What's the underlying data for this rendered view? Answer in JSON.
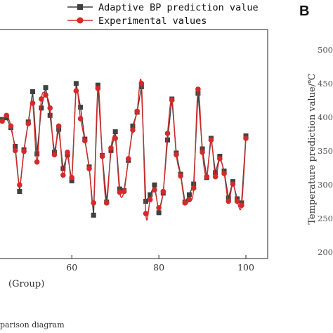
{
  "panel_b": {
    "letter": "B",
    "ylabel": "Temperature prediction value/℃",
    "yticks": [
      "500",
      "450",
      "400",
      "350",
      "300",
      "250",
      "200"
    ]
  },
  "caption": "parison diagram",
  "colors": {
    "predicted": "#404040",
    "experimental": "#d42a2a",
    "frame": "#222222"
  },
  "chart_data": {
    "type": "line",
    "xlabel": "(Group)",
    "xticks": [
      60,
      80,
      100
    ],
    "xlim": [
      43.5,
      105
    ],
    "ylim": [
      200,
      480
    ],
    "legend_position": "top",
    "series": [
      {
        "name": "Adaptive BP prediction value",
        "marker": "square",
        "x": [
          44,
          45,
          46,
          47,
          48,
          49,
          50,
          51,
          52,
          53,
          54,
          55,
          56,
          57,
          58,
          59,
          60,
          61,
          62,
          63,
          64,
          65,
          66,
          67,
          68,
          69,
          70,
          71,
          72,
          73,
          74,
          75,
          76,
          77,
          78,
          79,
          80,
          81,
          82,
          83,
          84,
          85,
          86,
          87,
          88,
          89,
          90,
          91,
          92,
          93,
          94,
          95,
          96,
          97,
          98,
          99,
          100
        ],
        "values": [
          370,
          372,
          360,
          337,
          282,
          333,
          367,
          404,
          328,
          384,
          409,
          375,
          330,
          358,
          310,
          327,
          295,
          414,
          385,
          346,
          312,
          253,
          412,
          326,
          269,
          332,
          355,
          285,
          283,
          320,
          362,
          379,
          410,
          270,
          278,
          290,
          256,
          280,
          345,
          395,
          329,
          303,
          269,
          278,
          291,
          402,
          334,
          299,
          347,
          305,
          325,
          307,
          274,
          294,
          273,
          268,
          350
        ]
      },
      {
        "name": "Experimental values",
        "marker": "circle",
        "x": [
          44,
          45,
          46,
          47,
          48,
          49,
          50,
          51,
          52,
          53,
          54,
          55,
          56,
          57,
          58,
          59,
          60,
          61,
          62,
          63,
          64,
          65,
          66,
          67,
          68,
          69,
          70,
          71,
          72,
          73,
          74,
          75,
          76,
          77,
          78,
          79,
          80,
          81,
          82,
          83,
          84,
          85,
          86,
          87,
          88,
          89,
          90,
          91,
          92,
          93,
          94,
          95,
          96,
          97,
          98,
          99,
          100
        ],
        "values": [
          368,
          375,
          362,
          332,
          290,
          331,
          365,
          390,
          318,
          395,
          400,
          384,
          327,
          362,
          302,
          330,
          299,
          405,
          371,
          344,
          310,
          268,
          408,
          325,
          268,
          335,
          347,
          281,
          282,
          322,
          357,
          380,
          414,
          255,
          272,
          284,
          262,
          282,
          353,
          394,
          327,
          301,
          268,
          272,
          286,
          407,
          330,
          300,
          345,
          300,
          322,
          304,
          270,
          291,
          270,
          265,
          347
        ]
      }
    ]
  }
}
